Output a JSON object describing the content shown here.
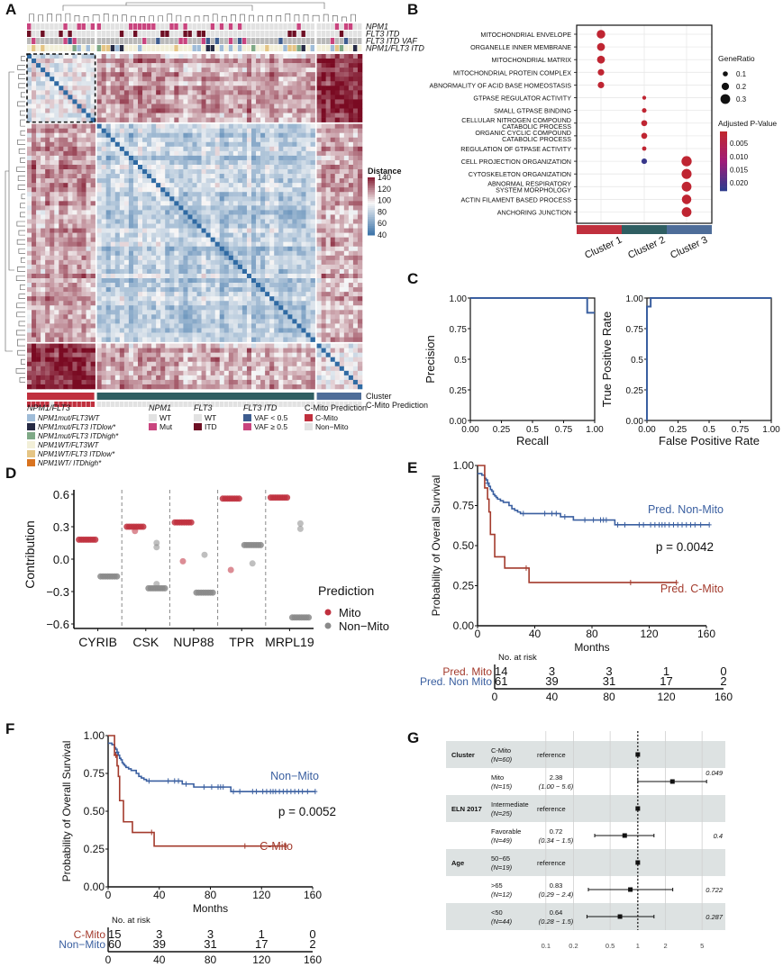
{
  "panel_labels": [
    "A",
    "B",
    "C",
    "D",
    "E",
    "F",
    "G"
  ],
  "chart_data": [
    {
      "panel": "A",
      "type": "heatmap",
      "title": "",
      "annotation_tracks": [
        "NPM1",
        "FLT3 ITD",
        "FLT3 ITD VAF",
        "NPM1/FLT3 ITD"
      ],
      "bottom_tracks": [
        "Cluster",
        "C-Mito Prediction"
      ],
      "colorbar": {
        "title": "Distance",
        "ticks": [
          140,
          120,
          100,
          80,
          60,
          40
        ],
        "range": [
          35,
          145
        ],
        "low_color": "#2f6aa3",
        "mid_color": "#f7f7f7",
        "high_color": "#7a0a22"
      },
      "clusters": [
        {
          "name": "Cluster 1",
          "n_samples": 15,
          "color": "#c0303e"
        },
        {
          "name": "Cluster 2",
          "n_samples": 48,
          "color": "#2f5e62"
        },
        {
          "name": "Cluster 3",
          "n_samples": 10,
          "color": "#4e6d99"
        }
      ],
      "legend": {
        "npm1_flt3": {
          "title": "NPM1/FLT3",
          "items": [
            {
              "label": "NPM1mut/FLT3WT",
              "color": "#9fbcd8"
            },
            {
              "label": "NPM1mut/FLT3 ITDlow*",
              "color": "#262a44"
            },
            {
              "label": "NPM1mut/FLT3 ITDhigh*",
              "color": "#7ea986"
            },
            {
              "label": "NPM1WT/FLT3WT",
              "color": "#f2efd8"
            },
            {
              "label": "NPM1WT/FLT3 ITDlow*",
              "color": "#e5c585"
            },
            {
              "label": "NPM1WT/ ITDhigh*",
              "color": "#d9731f"
            }
          ]
        },
        "npm1": {
          "title": "NPM1",
          "items": [
            {
              "label": "WT",
              "color": "#e2e2e2"
            },
            {
              "label": "Mut",
              "color": "#c9447e"
            }
          ]
        },
        "flt3": {
          "title": "FLT3",
          "items": [
            {
              "label": "WT",
              "color": "#e2e2e2"
            },
            {
              "label": "ITD",
              "color": "#6e0f24"
            }
          ]
        },
        "flt3_itd": {
          "title": "FLT3 ITD",
          "items": [
            {
              "label": "VAF < 0.5",
              "color": "#3d5c8f"
            },
            {
              "label": "VAF ≥ 0.5",
              "color": "#c9447e"
            }
          ]
        },
        "cmito": {
          "title": "C-Mito Prediction",
          "items": [
            {
              "label": "C-Mito",
              "color": "#c0303e"
            },
            {
              "label": "Non−Mito",
              "color": "#e2e2e2"
            }
          ]
        }
      }
    },
    {
      "panel": "B",
      "type": "scatter",
      "title": "",
      "categories": [
        "Cluster 1",
        "Cluster 2",
        "Cluster 3"
      ],
      "category_colors": [
        "#c0303e",
        "#2f5e62",
        "#4e6d99"
      ],
      "terms": [
        "MITOCHONDRIAL ENVELOPE",
        "ORGANELLE INNER MEMBRANE",
        "MITOCHONDRIAL MATRIX",
        "MITOCHONDRIAL PROTEIN COMPLEX",
        "ABNORMALITY OF ACID BASE HOMEOSTASIS",
        "GTPASE REGULATOR ACTIVITY",
        "SMALL GTPASE BINDING",
        "CELLULAR NITROGEN COMPOUND CATABOLIC PROCESS",
        "ORGANIC CYCLIC COMPOUND CATABOLIC PROCESS",
        "REGULATION OF GTPASE ACTIVITY",
        "CELL PROJECTION ORGANIZATION",
        "CYTOSKELETON ORGANIZATION",
        "ABNORMAL RESPIRATORY SYSTEM MORPHOLOGY",
        "ACTIN FILAMENT BASED PROCESS",
        "ANCHORING JUNCTION"
      ],
      "points": [
        {
          "term": 0,
          "cluster": 0,
          "gene_ratio": 0.25,
          "padj": 0.001
        },
        {
          "term": 1,
          "cluster": 0,
          "gene_ratio": 0.22,
          "padj": 0.001
        },
        {
          "term": 2,
          "cluster": 0,
          "gene_ratio": 0.22,
          "padj": 0.001
        },
        {
          "term": 3,
          "cluster": 0,
          "gene_ratio": 0.16,
          "padj": 0.001
        },
        {
          "term": 4,
          "cluster": 0,
          "gene_ratio": 0.16,
          "padj": 0.001
        },
        {
          "term": 5,
          "cluster": 1,
          "gene_ratio": 0.05,
          "padj": 0.001
        },
        {
          "term": 6,
          "cluster": 1,
          "gene_ratio": 0.08,
          "padj": 0.001
        },
        {
          "term": 7,
          "cluster": 1,
          "gene_ratio": 0.14,
          "padj": 0.001
        },
        {
          "term": 8,
          "cluster": 1,
          "gene_ratio": 0.14,
          "padj": 0.001
        },
        {
          "term": 9,
          "cluster": 1,
          "gene_ratio": 0.07,
          "padj": 0.001
        },
        {
          "term": 10,
          "cluster": 1,
          "gene_ratio": 0.12,
          "padj": 0.022
        },
        {
          "term": 10,
          "cluster": 2,
          "gene_ratio": 0.32,
          "padj": 0.001
        },
        {
          "term": 11,
          "cluster": 2,
          "gene_ratio": 0.31,
          "padj": 0.001
        },
        {
          "term": 12,
          "cluster": 2,
          "gene_ratio": 0.3,
          "padj": 0.001
        },
        {
          "term": 13,
          "cluster": 2,
          "gene_ratio": 0.29,
          "padj": 0.001
        },
        {
          "term": 14,
          "cluster": 2,
          "gene_ratio": 0.3,
          "padj": 0.001
        }
      ],
      "size_legend": {
        "title": "GeneRatio",
        "values": [
          0.1,
          0.2,
          0.3
        ]
      },
      "color_legend": {
        "title": "Adjusted P-Value",
        "ticks": [
          0.005,
          0.01,
          0.015,
          0.02
        ],
        "tick_labels": [
          "0.005",
          "0.010",
          "0.015",
          "0.020"
        ],
        "low_color": "#c0262f",
        "mid_color": "#a01a78",
        "high_color": "#2e3a8c",
        "range": [
          0.0005,
          0.023
        ]
      }
    },
    {
      "panel": "C-left",
      "type": "line",
      "title": "",
      "xlabel": "Recall",
      "ylabel": "Precision",
      "xlim": [
        0,
        1
      ],
      "ylim": [
        0,
        1
      ],
      "xticks": [
        "0.00",
        "0.25",
        "0.5",
        "0.75",
        "1.00"
      ],
      "yticks": [
        "0.00",
        "0.25",
        "0.5",
        "0.75",
        "1.00"
      ],
      "x": [
        0,
        0.94,
        0.94,
        1.0
      ],
      "y": [
        1.0,
        1.0,
        0.88,
        0.88
      ],
      "color": "#3a5fa0"
    },
    {
      "panel": "C-right",
      "type": "line",
      "title": "",
      "xlabel": "False Positive Rate",
      "ylabel": "True Positive Rate",
      "xlim": [
        0,
        1
      ],
      "ylim": [
        0,
        1
      ],
      "xticks": [
        "0.00",
        "0.25",
        "0.5",
        "0.75",
        "1.00"
      ],
      "yticks": [
        "0.00",
        "0.25",
        "0.5",
        "0.75",
        "1.00"
      ],
      "x": [
        0,
        0,
        0.03,
        0.03,
        1.0
      ],
      "y": [
        0,
        0.93,
        0.93,
        1.0,
        1.0
      ],
      "color": "#3a5fa0"
    },
    {
      "panel": "D",
      "type": "scatter",
      "title": "",
      "xlabel": "",
      "ylabel": "Contribution",
      "ylim": [
        -0.6,
        0.6
      ],
      "yticks": [
        "-0.6",
        "-0.3",
        "0.0",
        "0.3",
        "0.6"
      ],
      "categories": [
        "CYRIB",
        "CSK",
        "NUP88",
        "TPR",
        "MRPL19"
      ],
      "legend_title": "Prediction",
      "series": [
        {
          "name": "Mito",
          "color": "#c0303e",
          "main_values": [
            0.18,
            0.3,
            0.34,
            0.56,
            0.57
          ],
          "outliers": [
            [
              1,
              0.26
            ],
            [
              2,
              -0.02
            ],
            [
              3,
              -0.1
            ]
          ]
        },
        {
          "name": "Non−Mito",
          "color": "#8a8a8a",
          "main_values": [
            -0.16,
            -0.27,
            -0.31,
            0.13,
            -0.54
          ],
          "outliers": [
            [
              1,
              0.15
            ],
            [
              1,
              0.11
            ],
            [
              1,
              -0.23
            ],
            [
              2,
              0.04
            ],
            [
              3,
              -0.04
            ],
            [
              4,
              0.33
            ],
            [
              4,
              0.28
            ]
          ]
        }
      ]
    },
    {
      "panel": "E",
      "type": "line",
      "title": "",
      "xlabel": "Months",
      "ylabel": "Probability of Overall Survival",
      "xlim": [
        0,
        160
      ],
      "ylim": [
        0,
        1
      ],
      "xticks": [
        "0",
        "40",
        "80",
        "120",
        "160"
      ],
      "yticks": [
        "0.00",
        "0.25",
        "0.50",
        "0.75",
        "1.00"
      ],
      "pvalue": "p = 0.0042",
      "series": [
        {
          "name": "Pred. Non-Mito",
          "color": "#3a5fa0",
          "x": [
            0,
            3,
            5,
            6,
            7,
            8,
            9,
            10,
            11,
            12,
            13,
            14,
            16,
            18,
            22,
            24,
            26,
            28,
            30,
            58,
            67,
            96,
            162
          ],
          "y": [
            0.95,
            0.94,
            0.92,
            0.91,
            0.89,
            0.87,
            0.85,
            0.84,
            0.82,
            0.81,
            0.8,
            0.79,
            0.78,
            0.77,
            0.75,
            0.73,
            0.72,
            0.71,
            0.7,
            0.68,
            0.66,
            0.63,
            0.63
          ],
          "censor_x": [
            7,
            32,
            47,
            52,
            55,
            61,
            75,
            81,
            86,
            88,
            90,
            98,
            103,
            113,
            116,
            121,
            124,
            127,
            129,
            131,
            134,
            137,
            140,
            143,
            146,
            149,
            152,
            156,
            162
          ]
        },
        {
          "name": "Pred. C-Mito",
          "color": "#a33a2c",
          "x": [
            0,
            5,
            7,
            8,
            9,
            12,
            19,
            36,
            139
          ],
          "y": [
            1.0,
            0.86,
            0.79,
            0.71,
            0.57,
            0.43,
            0.36,
            0.27,
            0.27
          ],
          "censor_x": [
            34,
            107,
            139
          ]
        }
      ],
      "risk_table": {
        "title": "No. at risk",
        "times": [
          0,
          40,
          80,
          120,
          160
        ],
        "rows": [
          {
            "label": "Pred. Mito",
            "color": "#a33a2c",
            "values": [
              14,
              3,
              3,
              1,
              0
            ]
          },
          {
            "label": "Pred. Non Mito",
            "color": "#3a5fa0",
            "values": [
              61,
              39,
              31,
              17,
              2
            ]
          }
        ]
      }
    },
    {
      "panel": "F",
      "type": "line",
      "title": "",
      "xlabel": "Months",
      "ylabel": "Probability of Overall Survival",
      "xlim": [
        0,
        160
      ],
      "ylim": [
        0,
        1
      ],
      "xticks": [
        "0",
        "40",
        "80",
        "120",
        "160"
      ],
      "yticks": [
        "0.00",
        "0.25",
        "0.50",
        "0.75",
        "1.00"
      ],
      "pvalue": "p = 0.0052",
      "series": [
        {
          "name": "Non−Mito",
          "color": "#3a5fa0",
          "x": [
            0,
            3,
            5,
            6,
            7,
            8,
            9,
            10,
            11,
            12,
            13,
            14,
            16,
            18,
            22,
            24,
            26,
            28,
            30,
            58,
            67,
            96,
            162
          ],
          "y": [
            0.95,
            0.94,
            0.92,
            0.91,
            0.89,
            0.87,
            0.85,
            0.84,
            0.82,
            0.81,
            0.8,
            0.79,
            0.78,
            0.77,
            0.75,
            0.73,
            0.72,
            0.71,
            0.7,
            0.68,
            0.66,
            0.63,
            0.63
          ],
          "censor_x": [
            7,
            32,
            47,
            52,
            55,
            61,
            75,
            81,
            86,
            88,
            90,
            98,
            103,
            113,
            116,
            121,
            124,
            127,
            129,
            131,
            134,
            137,
            140,
            143,
            146,
            149,
            152,
            156,
            162
          ]
        },
        {
          "name": "C-Mito",
          "color": "#a33a2c",
          "x": [
            0,
            5,
            7,
            8,
            9,
            12,
            19,
            36,
            139
          ],
          "y": [
            1.0,
            0.87,
            0.8,
            0.73,
            0.57,
            0.43,
            0.36,
            0.27,
            0.27
          ],
          "censor_x": [
            6,
            34,
            107,
            139
          ]
        }
      ],
      "risk_table": {
        "title": "No. at risk",
        "times": [
          0,
          40,
          80,
          120,
          160
        ],
        "rows": [
          {
            "label": "C-Mito",
            "color": "#a33a2c",
            "values": [
              15,
              3,
              3,
              1,
              0
            ]
          },
          {
            "label": "Non−Mito",
            "color": "#3a5fa0",
            "values": [
              60,
              39,
              31,
              17,
              2
            ]
          }
        ]
      }
    },
    {
      "panel": "G",
      "type": "scatter",
      "subtype": "forest",
      "title": "",
      "xscale": "log",
      "xlim": [
        0.07,
        8
      ],
      "xticks": [
        0.1,
        0.2,
        0.5,
        1,
        2,
        5
      ],
      "xtick_labels": [
        "0.1",
        "0.2",
        "0.5",
        "1",
        "2",
        "5"
      ],
      "rows": [
        {
          "variable": "Cluster",
          "level": "C-Mito",
          "n": "(N=60)",
          "estimate_text": "reference",
          "ci_text": "",
          "hr": 1,
          "lo": null,
          "hi": null,
          "p": "",
          "shaded": true
        },
        {
          "variable": "",
          "level": "Mito",
          "n": "(N=15)",
          "estimate_text": "2.38",
          "ci_text": "(1.00 − 5.6)",
          "hr": 2.38,
          "lo": 1.0,
          "hi": 5.6,
          "p": "0.049",
          "shaded": false
        },
        {
          "variable": "ELN 2017",
          "level": "Intermediate",
          "n": "(N=25)",
          "estimate_text": "reference",
          "ci_text": "",
          "hr": 1,
          "lo": null,
          "hi": null,
          "p": "",
          "shaded": true
        },
        {
          "variable": "",
          "level": "Favorable",
          "n": "(N=49)",
          "estimate_text": "0.72",
          "ci_text": "(0.34 − 1.5)",
          "hr": 0.72,
          "lo": 0.34,
          "hi": 1.5,
          "p": "0.4",
          "shaded": false
        },
        {
          "variable": "Age",
          "level": "50−65",
          "n": "(N=19)",
          "estimate_text": "reference",
          "ci_text": "",
          "hr": 1,
          "lo": null,
          "hi": null,
          "p": "",
          "shaded": true
        },
        {
          "variable": "",
          "level": ">65",
          "n": "(N=12)",
          "estimate_text": "0.83",
          "ci_text": "(0.29 − 2.4)",
          "hr": 0.83,
          "lo": 0.29,
          "hi": 2.4,
          "p": "0.722",
          "shaded": false
        },
        {
          "variable": "",
          "level": "<50",
          "n": "(N=44)",
          "estimate_text": "0.64",
          "ci_text": "(0.28 − 1.5)",
          "hr": 0.64,
          "lo": 0.28,
          "hi": 1.5,
          "p": "0.287",
          "shaded": true
        }
      ]
    }
  ]
}
